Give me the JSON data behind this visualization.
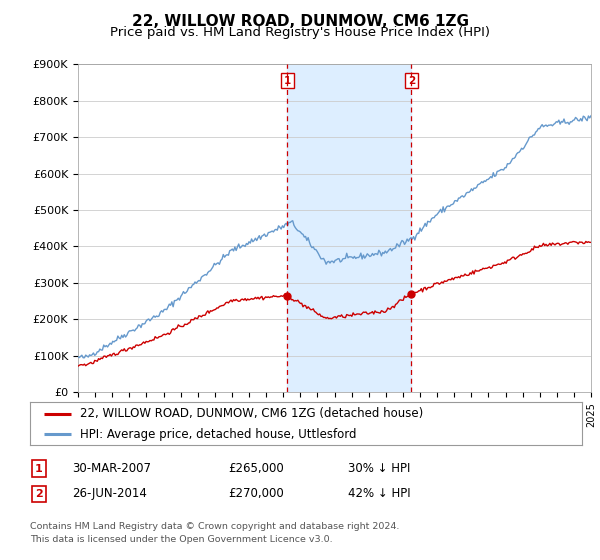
{
  "title": "22, WILLOW ROAD, DUNMOW, CM6 1ZG",
  "subtitle": "Price paid vs. HM Land Registry's House Price Index (HPI)",
  "ylim": [
    0,
    900000
  ],
  "yticks": [
    0,
    100000,
    200000,
    300000,
    400000,
    500000,
    600000,
    700000,
    800000,
    900000
  ],
  "ytick_labels": [
    "£0",
    "£100K",
    "£200K",
    "£300K",
    "£400K",
    "£500K",
    "£600K",
    "£700K",
    "£800K",
    "£900K"
  ],
  "x_start_year": 1995,
  "x_end_year": 2025,
  "event1_year": 2007.25,
  "event2_year": 2014.5,
  "event1_label": "1",
  "event2_label": "2",
  "event1_date": "30-MAR-2007",
  "event1_price": "£265,000",
  "event1_pct": "30% ↓ HPI",
  "event2_date": "26-JUN-2014",
  "event2_price": "£270,000",
  "event2_pct": "42% ↓ HPI",
  "legend_line1": "22, WILLOW ROAD, DUNMOW, CM6 1ZG (detached house)",
  "legend_line2": "HPI: Average price, detached house, Uttlesford",
  "footer1": "Contains HM Land Registry data © Crown copyright and database right 2024.",
  "footer2": "This data is licensed under the Open Government Licence v3.0.",
  "red_color": "#cc0000",
  "blue_color": "#6699cc",
  "shade_color": "#ddeeff",
  "background_color": "#ffffff",
  "grid_color": "#cccccc"
}
